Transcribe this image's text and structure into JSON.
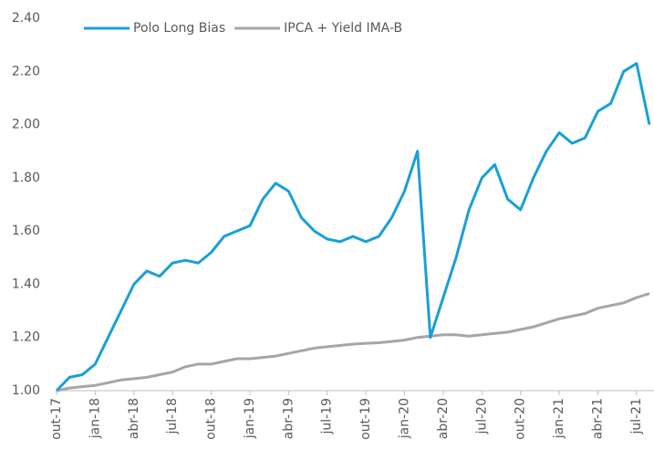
{
  "chart_data": {
    "type": "line",
    "categories": [
      "out-17",
      null,
      null,
      "jan-18",
      null,
      null,
      "abr-18",
      null,
      null,
      "jul-18",
      null,
      null,
      "out-18",
      null,
      null,
      "jan-19",
      null,
      null,
      "abr-19",
      null,
      null,
      "jul-19",
      null,
      null,
      "out-19",
      null,
      null,
      "jan-20",
      null,
      null,
      "abr-20",
      null,
      null,
      "jul-20",
      null,
      null,
      "out-20",
      null,
      null,
      "jan-21",
      null,
      null,
      "abr-21",
      null,
      null,
      "jul-21",
      null
    ],
    "series": [
      {
        "name": "Polo Long Bias",
        "color": "#1a9fd9",
        "values": [
          1.0,
          1.05,
          1.06,
          1.1,
          1.2,
          1.3,
          1.4,
          1.45,
          1.43,
          1.48,
          1.49,
          1.48,
          1.52,
          1.58,
          1.6,
          1.62,
          1.72,
          1.78,
          1.75,
          1.65,
          1.6,
          1.57,
          1.56,
          1.58,
          1.56,
          1.58,
          1.65,
          1.75,
          1.9,
          1.2,
          1.35,
          1.5,
          1.68,
          1.8,
          1.85,
          1.72,
          1.68,
          1.8,
          1.9,
          1.97,
          1.93,
          1.95,
          2.05,
          2.08,
          2.2,
          2.23,
          2.0
        ]
      },
      {
        "name": "IPCA + Yield IMA-B",
        "color": "#a6a6a6",
        "values": [
          1.0,
          1.01,
          1.015,
          1.02,
          1.03,
          1.04,
          1.045,
          1.05,
          1.06,
          1.07,
          1.09,
          1.1,
          1.1,
          1.11,
          1.12,
          1.12,
          1.125,
          1.13,
          1.14,
          1.15,
          1.16,
          1.165,
          1.17,
          1.175,
          1.178,
          1.18,
          1.185,
          1.19,
          1.2,
          1.205,
          1.21,
          1.21,
          1.205,
          1.21,
          1.215,
          1.22,
          1.23,
          1.24,
          1.255,
          1.27,
          1.28,
          1.29,
          1.31,
          1.32,
          1.33,
          1.35,
          1.365
        ]
      }
    ],
    "ylim": [
      1.0,
      2.4
    ],
    "yticks": [
      {
        "value": 1.0,
        "label": "1.00"
      },
      {
        "value": 1.2,
        "label": "1.20"
      },
      {
        "value": 1.4,
        "label": "1.40"
      },
      {
        "value": 1.6,
        "label": "1.60"
      },
      {
        "value": 1.8,
        "label": "1.80"
      },
      {
        "value": 2.0,
        "label": "2.00"
      },
      {
        "value": 2.2,
        "label": "2.20"
      },
      {
        "value": 2.4,
        "label": "2.40"
      }
    ],
    "grid": false,
    "legend": "top"
  }
}
